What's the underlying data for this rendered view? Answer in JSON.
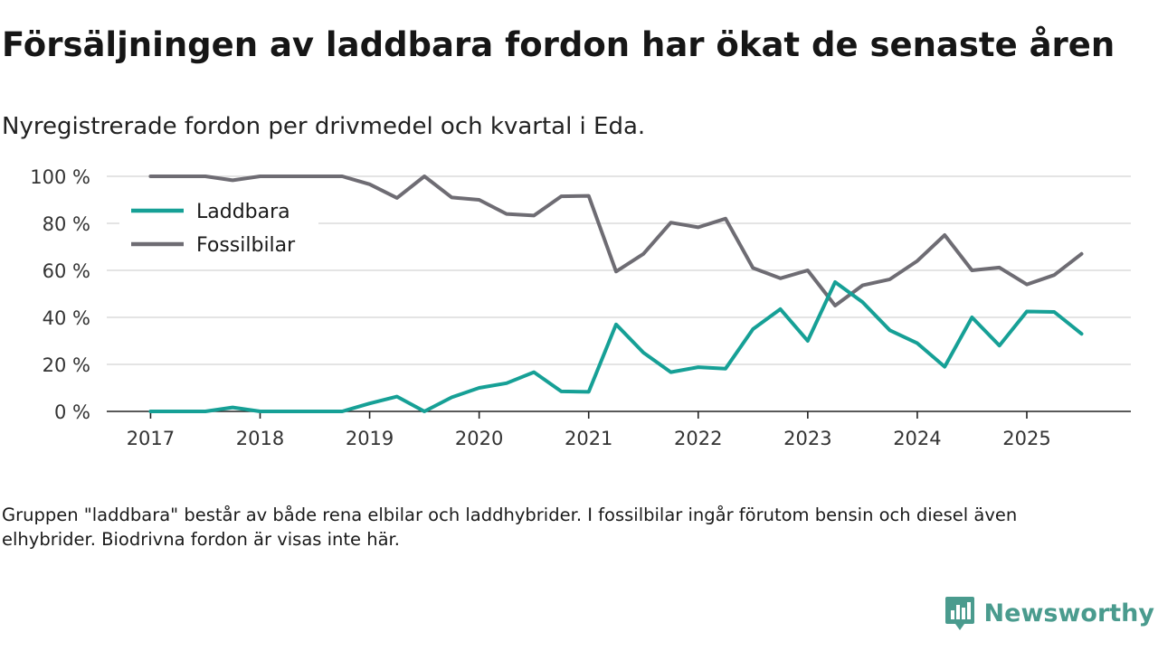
{
  "title": "Försäljningen av laddbara fordon har ökat de senaste åren",
  "subtitle": "Nyregistrerade fordon per drivmedel och kvartal i Eda.",
  "note": "Gruppen \"laddbara\" består av både rena elbilar och laddhybrider. I fossilbilar ingår förutom bensin och diesel även elhybrider. Biodrivna fordon är visas inte här.",
  "brand": {
    "name": "Newsworthy",
    "icon": "newsworthy-logo-icon",
    "color": "#4a9b8e"
  },
  "chart_data": {
    "type": "line",
    "title": "Försäljningen av laddbara fordon har ökat de senaste åren",
    "xlabel": "",
    "ylabel": "",
    "x": [
      2017.0,
      2017.25,
      2017.5,
      2017.75,
      2018.0,
      2018.25,
      2018.5,
      2018.75,
      2019.0,
      2019.25,
      2019.5,
      2019.75,
      2020.0,
      2020.25,
      2020.5,
      2020.75,
      2021.0,
      2021.25,
      2021.5,
      2021.75,
      2022.0,
      2022.25,
      2022.5,
      2022.75,
      2023.0,
      2023.25,
      2023.5,
      2023.75,
      2024.0,
      2024.25,
      2024.5,
      2024.75,
      2025.0,
      2025.25,
      2025.5
    ],
    "xlim": [
      2016.6,
      2025.95
    ],
    "xticks": [
      2017,
      2018,
      2019,
      2020,
      2021,
      2022,
      2023,
      2024,
      2025
    ],
    "xtick_labels": [
      "2017",
      "2018",
      "2019",
      "2020",
      "2021",
      "2022",
      "2023",
      "2024",
      "2025"
    ],
    "ylim": [
      0,
      100
    ],
    "yticks": [
      0,
      20,
      40,
      60,
      80,
      100
    ],
    "ytick_labels": [
      "0 %",
      "20 %",
      "40 %",
      "60 %",
      "80 %",
      "100 %"
    ],
    "grid": true,
    "legend_position": "top-left",
    "series": [
      {
        "name": "Laddbara",
        "color": "#16a096",
        "values": [
          0,
          0,
          0,
          1.7,
          0,
          0,
          0,
          0,
          3.4,
          6.3,
          0,
          6,
          10,
          12,
          16.7,
          8.5,
          8.3,
          37,
          25,
          16.7,
          18.8,
          18.2,
          35,
          43.5,
          30,
          55,
          46.5,
          34.5,
          29,
          19,
          40,
          28,
          42.5,
          42.3,
          33
        ]
      },
      {
        "name": "Fossilbilar",
        "color": "#6e6c73",
        "values": [
          100,
          100,
          100,
          98.3,
          100,
          100,
          100,
          100,
          96.6,
          90.8,
          100,
          91,
          90,
          84,
          83.3,
          91.5,
          91.7,
          59.5,
          67,
          80.3,
          78.3,
          82,
          61,
          56.6,
          60,
          45,
          53.6,
          56.2,
          64,
          75,
          60,
          61.2,
          54,
          58,
          67
        ]
      }
    ]
  }
}
